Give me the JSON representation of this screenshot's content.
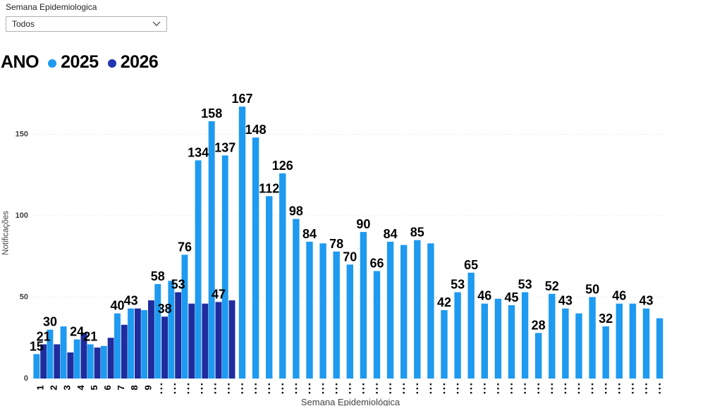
{
  "slicer": {
    "title": "Semana Epidemiologica",
    "value": "Todos"
  },
  "legend": {
    "title": "ANO",
    "items": [
      {
        "label": "2025",
        "color": "#1E9AF0"
      },
      {
        "label": "2026",
        "color": "#2236B2"
      }
    ]
  },
  "chart_data": {
    "type": "bar",
    "title": "",
    "xlabel": "Semana Epidemiológica",
    "ylabel": "Notificações",
    "ylim": [
      0,
      175
    ],
    "yticks": [
      0,
      50,
      100,
      150
    ],
    "grid": "dotted-horizontal",
    "legend_position": "top-left",
    "x_visible_ticks": [
      "1",
      "2",
      "3",
      "4",
      "5",
      "6",
      "7",
      "8",
      "9"
    ],
    "x_overflow_symbol": "…",
    "weeks": 47,
    "series": [
      {
        "name": "2025",
        "color": "#1E9AF0",
        "values": [
          15,
          30,
          32,
          24,
          21,
          20,
          40,
          43,
          42,
          58,
          60,
          76,
          134,
          158,
          137,
          167,
          148,
          112,
          126,
          98,
          84,
          83,
          78,
          70,
          90,
          66,
          84,
          82,
          85,
          83,
          42,
          53,
          65,
          46,
          49,
          45,
          53,
          28,
          52,
          43,
          40,
          50,
          32,
          46,
          46,
          43,
          37
        ],
        "labeled_weeks": [
          1,
          2,
          4,
          5,
          7,
          8,
          10,
          12,
          13,
          14,
          15,
          16,
          17,
          18,
          19,
          20,
          21,
          23,
          24,
          25,
          26,
          27,
          29,
          31,
          32,
          33,
          34,
          36,
          37,
          38,
          39,
          40,
          42,
          43,
          44,
          46
        ]
      },
      {
        "name": "2026",
        "color": "#1F2C9E",
        "values": [
          21,
          21,
          16,
          28,
          19,
          25,
          33,
          43,
          48,
          38,
          53,
          46,
          46,
          47,
          48
        ],
        "labeled_weeks": [
          1,
          10,
          11,
          14
        ]
      }
    ]
  }
}
